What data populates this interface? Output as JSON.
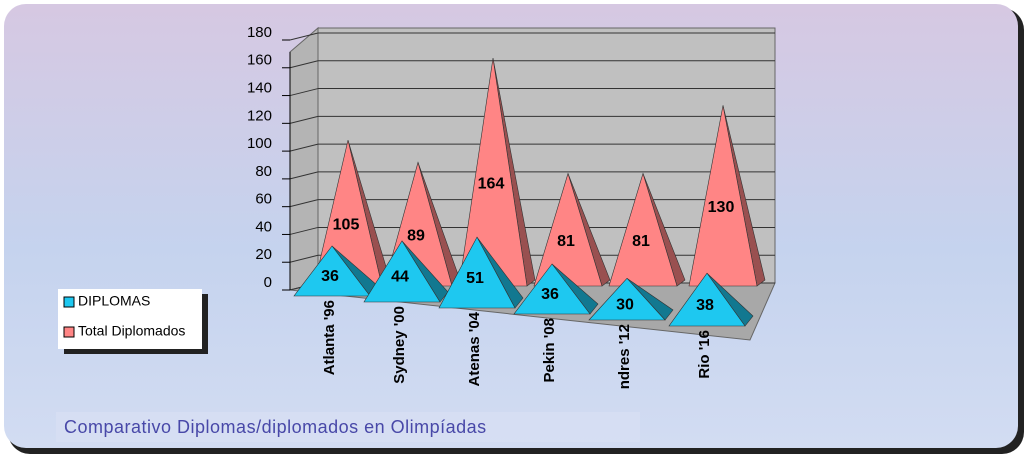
{
  "chart_data": {
    "type": "pyramid",
    "title": "Comparativo Diplomas/diplomados en Olimpíadas",
    "categories": [
      "Atlanta '96",
      "Sydney '00",
      "Atenas '04",
      "Pekin '08",
      "ndres '12",
      "Rio '16"
    ],
    "series": [
      {
        "name": "DIPLOMAS",
        "color": "#1ec8f0",
        "values": [
          36,
          44,
          51,
          36,
          30,
          38
        ]
      },
      {
        "name": "Total Diplomados",
        "color": "#ff8585",
        "values": [
          105,
          89,
          164,
          81,
          81,
          130
        ]
      }
    ],
    "ylim": [
      0,
      180
    ],
    "yticks": [
      0,
      20,
      40,
      60,
      80,
      100,
      120,
      140,
      160,
      180
    ],
    "grid": true,
    "legend": "left"
  }
}
